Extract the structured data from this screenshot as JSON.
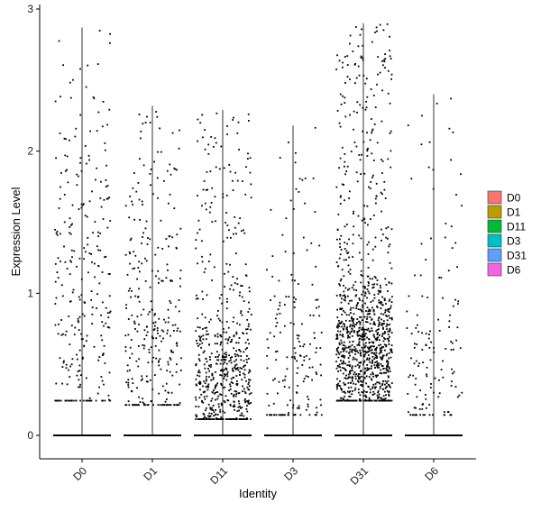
{
  "chart_data": {
    "type": "scatter",
    "subtype": "violin-jitter",
    "title": "",
    "xlabel": "Identity",
    "ylabel": "Expression Level",
    "ylim": [
      -0.15,
      3.0
    ],
    "yticks": [
      0,
      1,
      2,
      3
    ],
    "ytick_labels": [
      "0",
      "1",
      "2",
      "3"
    ],
    "categories": [
      "D0",
      "D1",
      "D11",
      "D3",
      "D31",
      "D6"
    ],
    "colors": [
      "#F8766D",
      "#B79F00",
      "#00BA38",
      "#00BFC4",
      "#619CFF",
      "#F564E3"
    ],
    "legend_position": "right",
    "grid": false,
    "series": [
      {
        "name": "D0",
        "max": 2.87,
        "nonzero_points": 280,
        "median_nonzero": 1.0,
        "spread": 0.72,
        "min_nonzero": 0.25
      },
      {
        "name": "D1",
        "max": 2.32,
        "nonzero_points": 300,
        "median_nonzero": 0.75,
        "spread": 0.55,
        "min_nonzero": 0.22
      },
      {
        "name": "D11",
        "max": 2.29,
        "nonzero_points": 600,
        "median_nonzero": 0.4,
        "spread": 0.25,
        "min_nonzero": 0.12
      },
      {
        "name": "D3",
        "max": 2.18,
        "nonzero_points": 170,
        "median_nonzero": 0.45,
        "spread": 0.4,
        "min_nonzero": 0.15
      },
      {
        "name": "D31",
        "max": 2.9,
        "nonzero_points": 1100,
        "median_nonzero": 0.6,
        "spread": 0.3,
        "min_nonzero": 0.25
      },
      {
        "name": "D6",
        "max": 2.4,
        "nonzero_points": 140,
        "median_nonzero": 0.45,
        "spread": 0.45,
        "min_nonzero": 0.15
      }
    ]
  }
}
